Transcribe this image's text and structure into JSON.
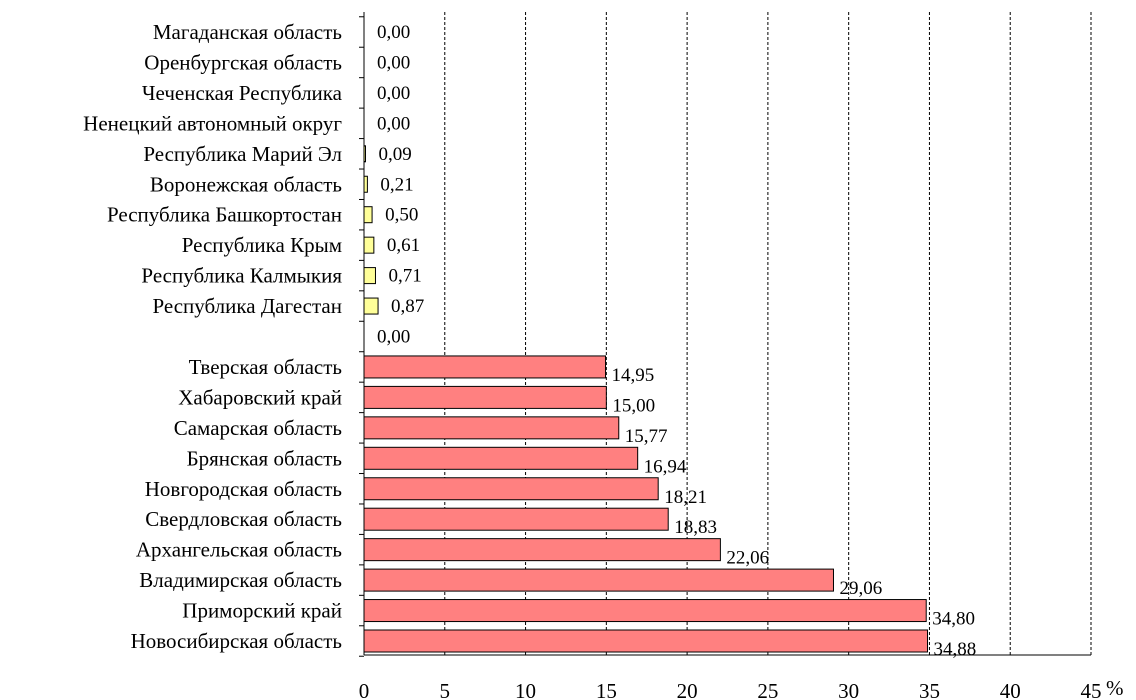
{
  "chart_data": {
    "type": "bar",
    "orientation": "horizontal",
    "title": "",
    "xlabel": "%",
    "ylabel": "",
    "xlim": [
      0,
      45
    ],
    "x_ticks": [
      "0",
      "5",
      "10",
      "15",
      "20",
      "25",
      "30",
      "35",
      "40",
      "45"
    ],
    "grid": "vertical dashed",
    "legend": "none",
    "categories": [
      "Магаданская область",
      "Оренбургская область",
      "Чеченская Республика",
      "Ненецкий автономный округ",
      "Республика Марий Эл",
      "Воронежская область",
      "Республика Башкортостан",
      "Республика Крым",
      "Республика Калмыкия",
      "Республика Дагестан",
      "",
      "Тверская область",
      "Хабаровский край",
      "Самарская область",
      "Брянская область",
      "Новгородская область",
      "Свердловская область",
      "Архангельская область",
      "Владимирская область",
      "Приморский край",
      "Новосибирская область"
    ],
    "values": [
      0.0,
      0.0,
      0.0,
      0.0,
      0.09,
      0.21,
      0.5,
      0.61,
      0.71,
      0.87,
      0.0,
      14.95,
      15.0,
      15.77,
      16.94,
      18.21,
      18.83,
      22.06,
      29.06,
      34.8,
      34.88
    ],
    "value_labels": [
      "0,00",
      "0,00",
      "0,00",
      "0,00",
      "0,09",
      "0,21",
      "0,50",
      "0,61",
      "0,71",
      "0,87",
      "0,00",
      "14,95",
      "15,00",
      "15,77",
      "16,94",
      "18,21",
      "18,83",
      "22,06",
      "29,06",
      "34,80",
      "34,88"
    ],
    "bar_groups": [
      "low",
      "low",
      "low",
      "low",
      "low",
      "low",
      "low",
      "low",
      "low",
      "low",
      "low",
      "high",
      "high",
      "high",
      "high",
      "high",
      "high",
      "high",
      "high",
      "high",
      "high"
    ],
    "colors": {
      "low": "#ffff99",
      "high": "#ff8080",
      "bar_stroke": "#000000",
      "grid": "#000000",
      "axis": "#000000"
    }
  }
}
